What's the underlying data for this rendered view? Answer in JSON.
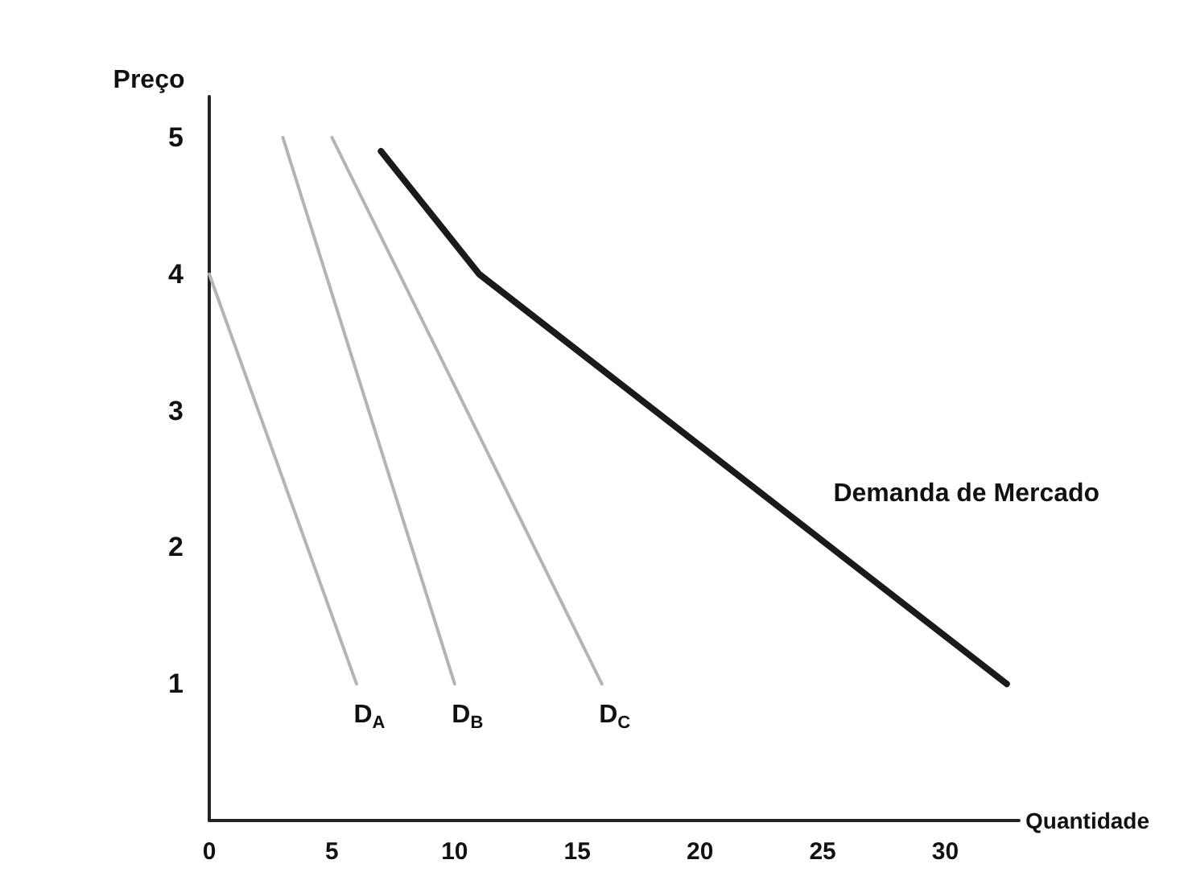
{
  "chart_data": {
    "type": "line",
    "xlabel": "Quantidade",
    "ylabel": "Preço",
    "xlim": [
      0,
      33
    ],
    "xticks": [
      0,
      5,
      10,
      15,
      20,
      25,
      30
    ],
    "ylim": [
      0,
      5.3
    ],
    "yticks": [
      1,
      2,
      3,
      4,
      5
    ],
    "grid": false,
    "legend": false,
    "marker": "none",
    "line_style": "solid",
    "series": [
      {
        "name": "D$_{A}$",
        "color": "#b4b4b4",
        "x": [
          0,
          6
        ],
        "values": [
          4,
          1
        ]
      },
      {
        "name": "D$_{B}$",
        "color": "#b4b4b4",
        "x": [
          3,
          10
        ],
        "values": [
          5,
          1
        ]
      },
      {
        "name": "D$_{C}$",
        "color": "#b4b4b4",
        "x": [
          5,
          16
        ],
        "values": [
          5,
          1
        ]
      },
      {
        "name": "Demanda de Mercado",
        "color": "#1a1a1a",
        "x": [
          7,
          11,
          32.5
        ],
        "values": [
          4.9,
          4,
          1
        ]
      }
    ]
  }
}
